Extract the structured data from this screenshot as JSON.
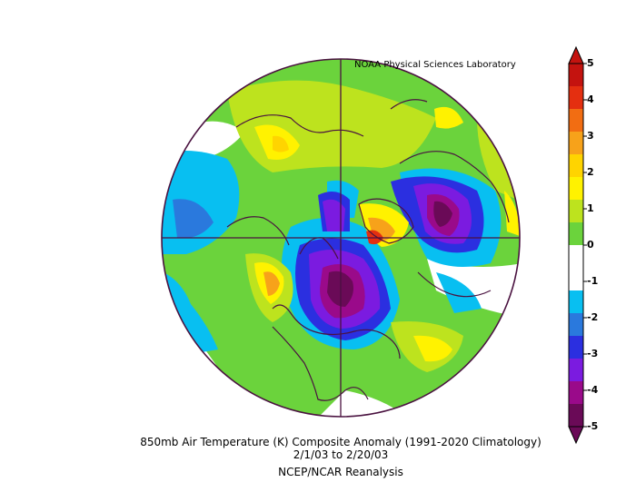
{
  "credit": "NOAA Physical Sciences Laboratory",
  "title": "850mb Air Temperature (K) Composite Anomaly (1991-2020 Climatology)",
  "date_range": "2/1/03   to 2/20/03",
  "source": "NCEP/NCAR Reanalysis",
  "colorbar": {
    "labels": [
      "5",
      "4",
      "3",
      "2",
      "1",
      "0",
      "-1",
      "-2",
      "-3",
      "-4",
      "-5"
    ],
    "bins": [
      {
        "color": "#6a0a57"
      },
      {
        "color": "#9a0a8a"
      },
      {
        "color": "#7b1be0"
      },
      {
        "color": "#2b2fe0"
      },
      {
        "color": "#2a79dd"
      },
      {
        "color": "#08bff1"
      },
      {
        "color": "#ffffff"
      },
      {
        "color": "#ffffff"
      },
      {
        "color": "#6bd33c"
      },
      {
        "color": "#bde31e"
      },
      {
        "color": "#fff200"
      },
      {
        "color": "#ffd400"
      },
      {
        "color": "#f7a21a"
      },
      {
        "color": "#f26d12"
      },
      {
        "color": "#e42f10"
      },
      {
        "color": "#c4130f"
      }
    ]
  }
}
